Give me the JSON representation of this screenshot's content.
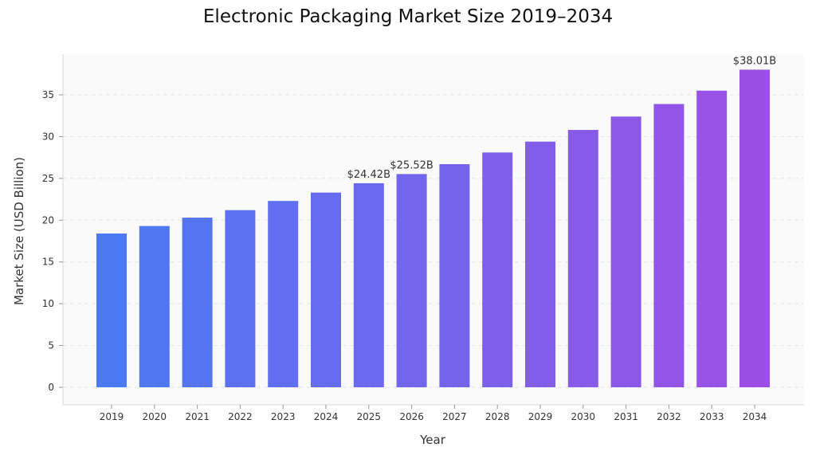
{
  "chart_data": {
    "type": "bar",
    "title": "Electronic Packaging Market Size 2019–2034",
    "xlabel": "Year",
    "ylabel": "Market Size (USD Billion)",
    "categories": [
      "2019",
      "2020",
      "2021",
      "2022",
      "2023",
      "2024",
      "2025",
      "2026",
      "2027",
      "2028",
      "2029",
      "2030",
      "2031",
      "2032",
      "2033",
      "2034"
    ],
    "values": [
      18.4,
      19.3,
      20.3,
      21.2,
      22.3,
      23.3,
      24.42,
      25.52,
      26.7,
      28.1,
      29.4,
      30.8,
      32.4,
      33.9,
      35.5,
      38.01
    ],
    "ylim": [
      -2,
      40
    ],
    "yticks": [
      0,
      5,
      10,
      15,
      20,
      25,
      30,
      35
    ],
    "grid": true,
    "legend": "none",
    "annotations": [
      {
        "category": "2025",
        "text": "$24.42B"
      },
      {
        "category": "2026",
        "text": "$25.52B"
      },
      {
        "category": "2034",
        "text": "$38.01B"
      }
    ],
    "colors": {
      "bar_start": "#4a7af3",
      "bar_end": "#9d4fe5",
      "plot_background": "#fafafa",
      "grid": "#e6e6e6",
      "axis": "#d9d9d9"
    }
  }
}
